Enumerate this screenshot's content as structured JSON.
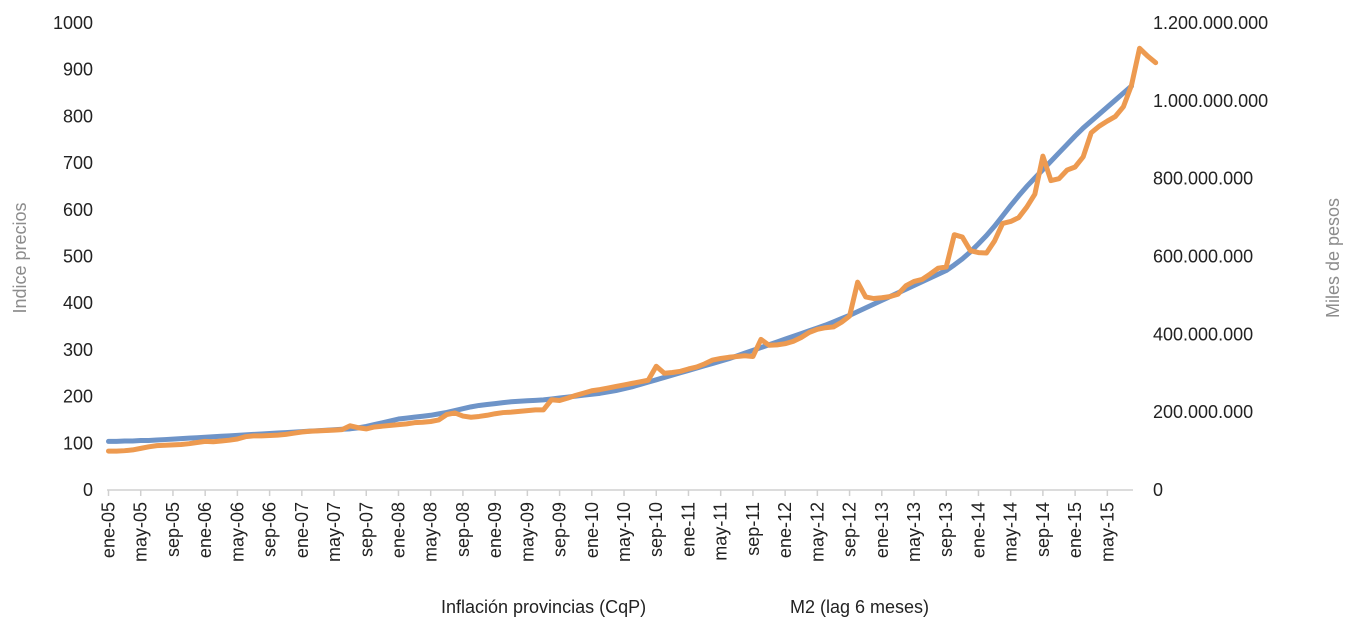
{
  "chart_data": {
    "type": "line",
    "title": "",
    "ylabel": "Indice precios",
    "y2label": "Miles de pesos",
    "ylim": [
      0,
      1000
    ],
    "y2lim": [
      0,
      1200000000
    ],
    "yticks": [
      "0",
      "100",
      "200",
      "300",
      "400",
      "500",
      "600",
      "700",
      "800",
      "900",
      "1000"
    ],
    "y2ticks": [
      "0",
      "200.000.000",
      "400.000.000",
      "600.000.000",
      "800.000.000",
      "1.000.000.000",
      "1.200.000.000"
    ],
    "x_start": "ene-05",
    "x_labels": [
      "ene-05",
      "may-05",
      "sep-05",
      "ene-06",
      "may-06",
      "sep-06",
      "ene-07",
      "may-07",
      "sep-07",
      "ene-08",
      "may-08",
      "sep-08",
      "ene-09",
      "may-09",
      "sep-09",
      "ene-10",
      "may-10",
      "sep-10",
      "ene-11",
      "may-11",
      "sep-11",
      "ene-12",
      "may-12",
      "sep-12",
      "ene-13",
      "may-13",
      "sep-13",
      "ene-14",
      "may-14",
      "sep-14",
      "ene-15",
      "may-15"
    ],
    "legend_position": "bottom",
    "grid": false,
    "series": [
      {
        "name": "Inflación provincias (CqP)",
        "axis": "left",
        "color": "#6e94c8",
        "values": [
          104,
          104,
          105,
          105,
          106,
          106,
          107,
          108,
          109,
          110,
          111,
          112,
          113,
          114,
          115,
          116,
          117,
          118,
          119,
          120,
          121,
          122,
          123,
          124,
          125,
          126,
          127,
          128,
          129,
          130,
          131,
          133,
          136,
          140,
          144,
          148,
          152,
          154,
          156,
          158,
          160,
          163,
          166,
          170,
          174,
          178,
          181,
          183,
          185,
          187,
          189,
          190,
          191,
          192,
          193,
          195,
          197,
          199,
          201,
          203,
          205,
          207,
          210,
          213,
          217,
          221,
          226,
          231,
          236,
          241,
          246,
          251,
          256,
          261,
          266,
          271,
          276,
          281,
          287,
          293,
          299,
          305,
          311,
          317,
          323,
          329,
          335,
          341,
          347,
          353,
          360,
          367,
          374,
          382,
          390,
          398,
          406,
          414,
          422,
          430,
          438,
          446,
          454,
          462,
          470,
          482,
          495,
          510,
          527,
          545,
          565,
          587,
          609,
          630,
          650,
          668,
          686,
          704,
          722,
          740,
          758,
          775,
          790,
          805,
          820,
          835,
          850,
          865
        ]
      },
      {
        "name": "M2 (lag 6 meses)",
        "axis": "right",
        "color": "#ed9a50",
        "values": [
          100000000,
          100000000,
          101000000,
          103000000,
          107000000,
          111000000,
          114000000,
          115000000,
          116000000,
          117000000,
          119000000,
          122000000,
          125000000,
          124000000,
          126000000,
          128000000,
          131000000,
          137000000,
          139000000,
          139000000,
          140000000,
          141000000,
          143000000,
          146000000,
          149000000,
          151000000,
          152000000,
          153000000,
          154000000,
          155000000,
          165000000,
          160000000,
          157000000,
          162000000,
          164000000,
          166000000,
          168000000,
          170000000,
          173000000,
          174000000,
          176000000,
          180000000,
          194000000,
          198000000,
          190000000,
          187000000,
          189000000,
          192000000,
          196000000,
          199000000,
          200000000,
          202000000,
          204000000,
          206000000,
          206000000,
          232000000,
          230000000,
          236000000,
          243000000,
          249000000,
          255000000,
          258000000,
          262000000,
          266000000,
          270000000,
          274000000,
          278000000,
          282000000,
          318000000,
          300000000,
          302000000,
          305000000,
          311000000,
          316000000,
          324000000,
          334000000,
          338000000,
          341000000,
          343000000,
          345000000,
          343000000,
          387000000,
          372000000,
          373000000,
          376000000,
          382000000,
          392000000,
          405000000,
          413000000,
          417000000,
          419000000,
          431000000,
          447000000,
          534000000,
          496000000,
          492000000,
          494000000,
          497000000,
          503000000,
          525000000,
          536000000,
          541000000,
          555000000,
          570000000,
          573000000,
          656000000,
          650000000,
          615000000,
          610000000,
          609000000,
          640000000,
          685000000,
          690000000,
          700000000,
          727000000,
          760000000,
          858000000,
          795000000,
          800000000,
          822000000,
          830000000,
          856000000,
          918000000,
          935000000,
          948000000,
          960000000,
          985000000,
          1040000000,
          1135000000,
          1115000000,
          1098000000
        ]
      }
    ]
  }
}
